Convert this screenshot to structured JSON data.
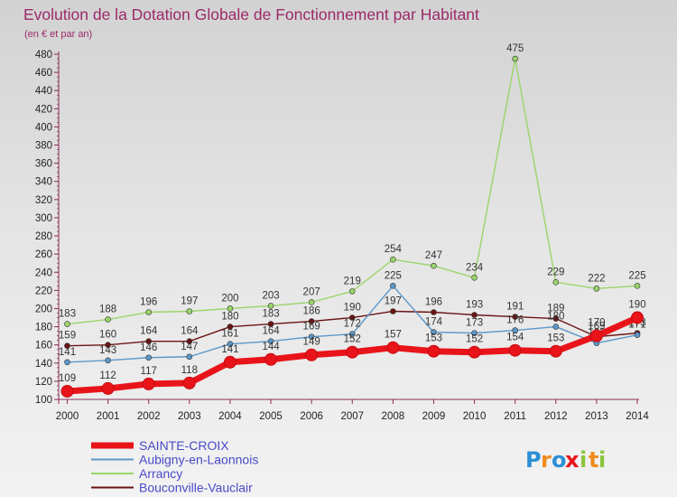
{
  "chart_data": {
    "type": "line",
    "title": "Evolution de la Dotation Globale de Fonctionnement par Habitant",
    "subtitle": "(en € et par an)",
    "xlabel": "",
    "ylabel": "",
    "ylim": [
      100,
      480
    ],
    "ytick_step": 20,
    "grid": false,
    "legend_position": "bottom-left",
    "categories": [
      "2000",
      "2001",
      "2002",
      "2003",
      "2004",
      "2005",
      "2006",
      "2007",
      "2008",
      "2009",
      "2010",
      "2011",
      "2012",
      "2013",
      "2014"
    ],
    "series": [
      {
        "name": "Bouconville-Vauclair",
        "color": "#6b1414",
        "values": [
          159,
          160,
          164,
          164,
          180,
          183,
          186,
          190,
          197,
          196,
          193,
          191,
          189,
          169,
          173
        ],
        "labels": [
          "159",
          "160",
          "164",
          "164",
          "180",
          "183",
          "186",
          "190",
          "197",
          "196",
          "193",
          "191",
          "189",
          "169",
          "173"
        ]
      },
      {
        "name": "Arrancy",
        "color": "#9ad46a",
        "values": [
          183,
          188,
          196,
          197,
          200,
          203,
          207,
          219,
          254,
          247,
          234,
          475,
          229,
          222,
          225
        ],
        "labels": [
          "183",
          "188",
          "196",
          "197",
          "200",
          "203",
          "207",
          "219",
          "254",
          "247",
          "234",
          "475",
          "229",
          "222",
          "225"
        ]
      },
      {
        "name": "Aubigny-en-Laonnois",
        "color": "#5b97c9",
        "values": [
          141,
          143,
          146,
          147,
          161,
          164,
          169,
          172,
          225,
          174,
          173,
          176,
          180,
          162,
          171
        ],
        "labels": [
          "141",
          "143",
          "146",
          "147",
          "161",
          "164",
          "169",
          "172",
          "225",
          "174",
          "173",
          "176",
          "180",
          "162",
          "171"
        ]
      },
      {
        "name": "SAINTE-CROIX",
        "color": "#e8141a",
        "values": [
          109,
          112,
          117,
          118,
          141,
          144,
          149,
          152,
          157,
          153,
          152,
          154,
          153,
          170,
          190
        ],
        "labels": [
          "109",
          "112",
          "117",
          "118",
          "141",
          "144",
          "149",
          "152",
          "157",
          "153",
          "152",
          "154",
          "153",
          "170",
          "190"
        ]
      }
    ],
    "legend_order": [
      "SAINTE-CROIX",
      "Aubigny-en-Laonnois",
      "Arrancy",
      "Bouconville-Vauclair"
    ]
  },
  "logo": {
    "letters": [
      "P",
      "r",
      "o",
      "x",
      "i",
      "t",
      "i"
    ],
    "colors": [
      "#2a8fd6",
      "#f08c1c",
      "#2a8fd6",
      "#e8141a",
      "#8cc63e",
      "#f08c1c",
      "#8cc63e"
    ]
  },
  "colors": {
    "title": "#9b2a6a",
    "axis": "#8a2a55",
    "tick_text": "#222222",
    "legend_text": "#4a4ac8",
    "label_text": "#333333"
  }
}
